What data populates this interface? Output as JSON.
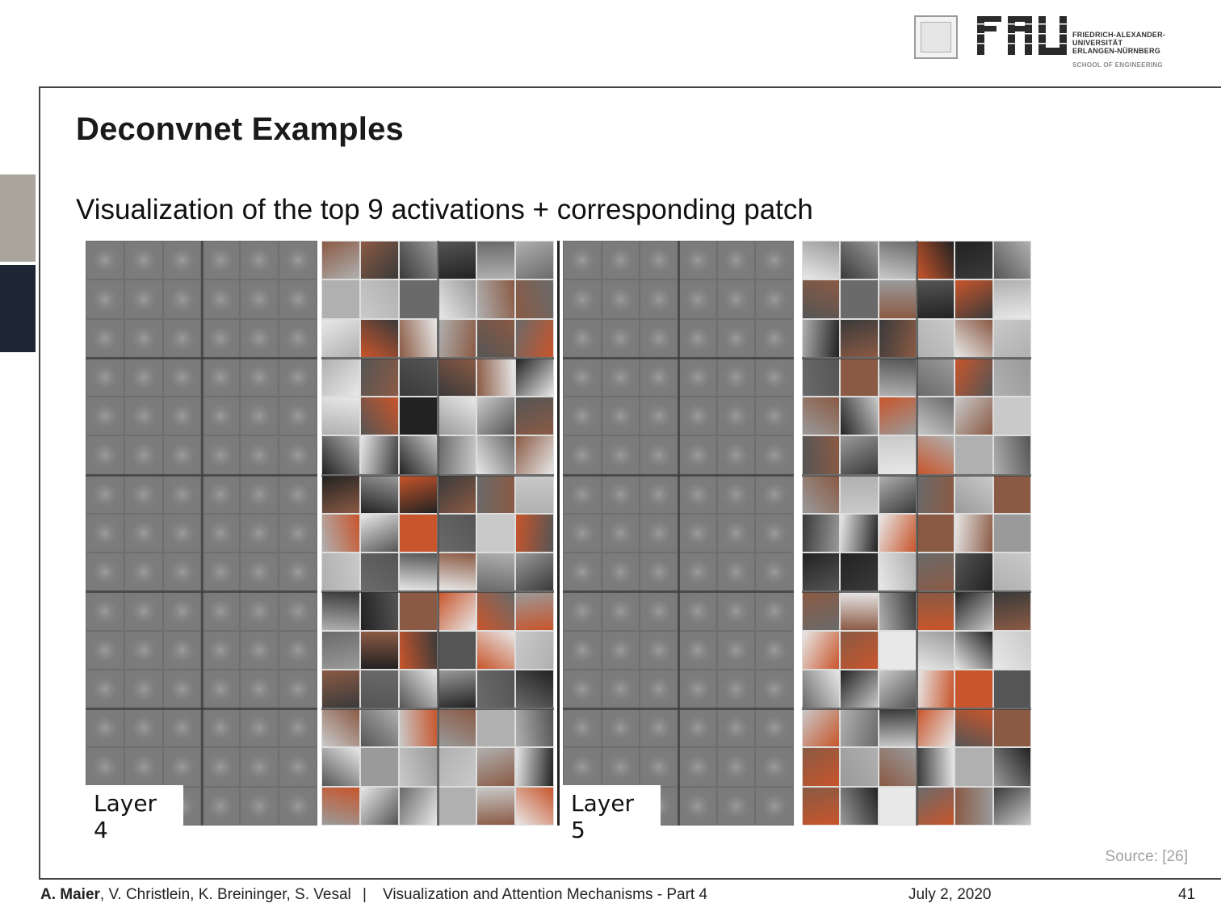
{
  "header": {
    "logo_text": "FAU",
    "university_lines": [
      "FRIEDRICH-ALEXANDER-",
      "UNIVERSITÄT",
      "ERLANGEN-NÜRNBERG"
    ],
    "school": "SCHOOL OF ENGINEERING"
  },
  "slide": {
    "title": "Deconvnet Examples",
    "subtitle": "Visualization of the top 9 activations + corresponding patch"
  },
  "figure": {
    "layer4_label": "Layer 4",
    "layer5_label": "Layer 5",
    "source": "Source: [26]"
  },
  "footer": {
    "author_main": "A. Maier",
    "authors_rest": ", V. Christlein, K. Breininger, S. Vesal",
    "separator": "|",
    "lecture": "Visualization and Attention Mechanisms - Part 4",
    "date": "July 2, 2020",
    "page": "41"
  },
  "colors": {
    "accent_orange": "#c8552b",
    "sidebar_light": "#aaa59c",
    "sidebar_dark": "#1e2634"
  }
}
